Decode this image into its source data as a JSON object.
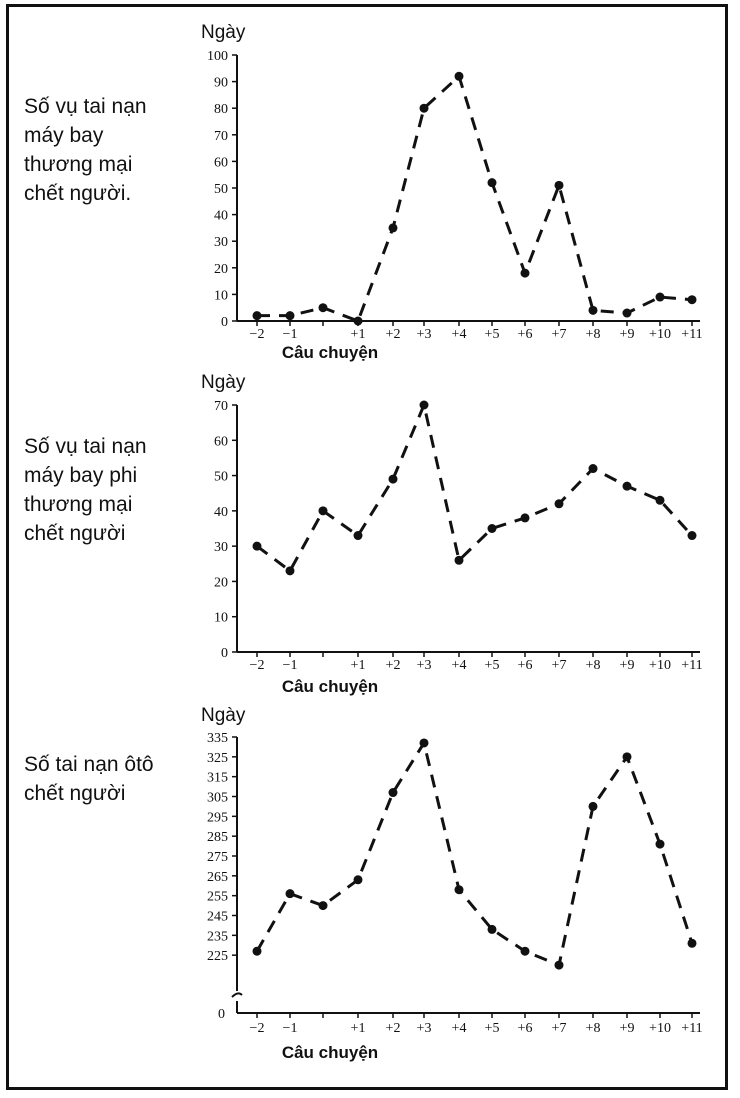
{
  "chart_data": [
    {
      "type": "line",
      "title": "",
      "side_label": "Số vụ tai nạn\nmáy bay\nthương mại\nchết người.",
      "ylabel": "Ngày",
      "xlabel": "Câu chuyện",
      "categories": [
        "−2",
        "−1",
        "",
        "+1",
        "+2",
        "+3",
        "+4",
        "+5",
        "+6",
        "+7",
        "+8",
        "+9",
        "+10",
        "+11"
      ],
      "yticks": [
        0,
        10,
        20,
        30,
        40,
        50,
        60,
        70,
        80,
        90,
        100
      ],
      "ylim": [
        0,
        100
      ],
      "axis_break": false,
      "line_style": "dashed",
      "series": [
        {
          "values": [
            2,
            2,
            5,
            0,
            35,
            80,
            92,
            52,
            18,
            51,
            4,
            3,
            9,
            8
          ]
        }
      ]
    },
    {
      "type": "line",
      "title": "",
      "side_label": "Số vụ tai nạn\nmáy bay phi\nthương mại\nchết người",
      "ylabel": "Ngày",
      "xlabel": "Câu chuyện",
      "categories": [
        "−2",
        "−1",
        "",
        "+1",
        "+2",
        "+3",
        "+4",
        "+5",
        "+6",
        "+7",
        "+8",
        "+9",
        "+10",
        "+11"
      ],
      "yticks": [
        0,
        10,
        20,
        30,
        40,
        50,
        60,
        70
      ],
      "ylim": [
        0,
        70
      ],
      "axis_break": false,
      "line_style": "dashed",
      "series": [
        {
          "values": [
            30,
            23,
            40,
            33,
            49,
            70,
            26,
            35,
            38,
            42,
            52,
            47,
            43,
            33
          ]
        }
      ]
    },
    {
      "type": "line",
      "title": "",
      "side_label": "Số tai nạn ôtô\nchết người",
      "ylabel": "Ngày",
      "xlabel": "Câu chuyện",
      "categories": [
        "−2",
        "−1",
        "",
        "+1",
        "+2",
        "+3",
        "+4",
        "+5",
        "+6",
        "+7",
        "+8",
        "+9",
        "+10",
        "+11"
      ],
      "yticks": [
        225,
        235,
        245,
        255,
        265,
        275,
        285,
        295,
        305,
        315,
        325,
        335
      ],
      "zero_tick": "0",
      "ylim": [
        215,
        335
      ],
      "axis_break": true,
      "line_style": "dashed",
      "series": [
        {
          "values": [
            227,
            256,
            250,
            263,
            307,
            332,
            258,
            238,
            227,
            220,
            300,
            325,
            281,
            231
          ]
        }
      ]
    }
  ]
}
